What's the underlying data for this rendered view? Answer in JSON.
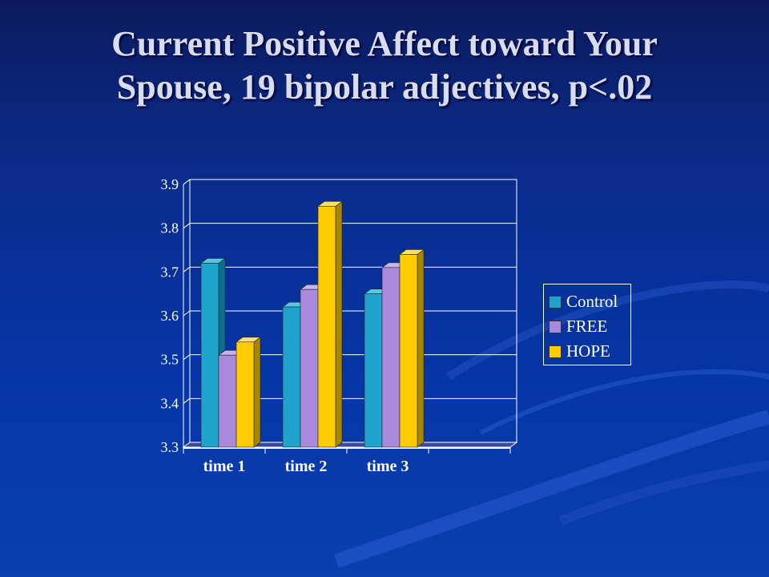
{
  "slide": {
    "title_line1": "Current Positive Affect toward Your",
    "title_line2": "Spouse, 19 bipolar adjectives, p<.02"
  },
  "chart_data": {
    "type": "bar",
    "style": "3d-clustered",
    "categories": [
      "time 1",
      "time 2",
      "time 3"
    ],
    "series": [
      {
        "name": "Control",
        "values": [
          3.72,
          3.62,
          3.65
        ],
        "color": "#1ea3cc",
        "side": "#0c6f8f",
        "top": "#55c8e8"
      },
      {
        "name": "FREE",
        "values": [
          3.51,
          3.66,
          3.71
        ],
        "color": "#a889dc",
        "side": "#6e55a8",
        "top": "#c8b2ee"
      },
      {
        "name": "HOPE",
        "values": [
          3.54,
          3.85,
          3.74
        ],
        "color": "#ffcc00",
        "side": "#a88600",
        "top": "#ffe066"
      }
    ],
    "ylim": [
      3.3,
      3.9
    ],
    "yticks": [
      "3.3",
      "3.4",
      "3.5",
      "3.6",
      "3.7",
      "3.8",
      "3.9"
    ],
    "grid": true,
    "legend_position": "right"
  },
  "colors": {
    "background": "#0535a6",
    "gridline": "#ffffff",
    "text": "#ffffff"
  }
}
